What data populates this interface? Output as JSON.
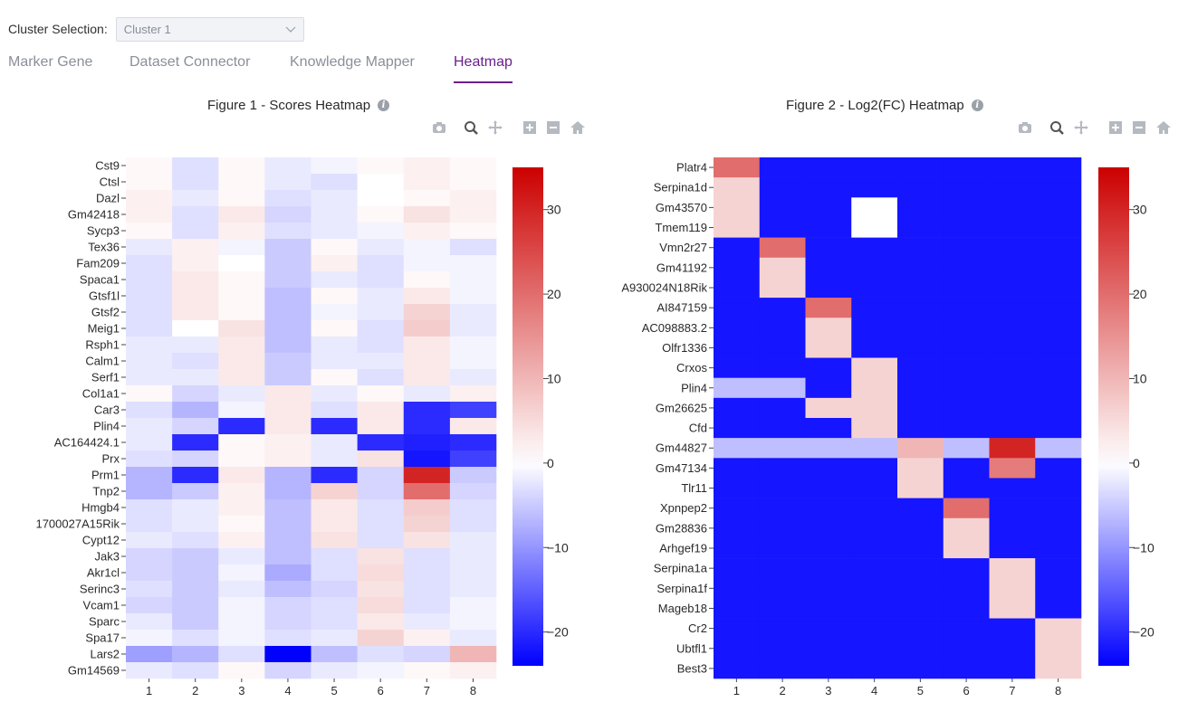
{
  "cluster": {
    "label": "Cluster Selection:",
    "value": "Cluster 1"
  },
  "tabs": [
    {
      "label": "Marker Gene",
      "active": false
    },
    {
      "label": "Dataset Connector",
      "active": false
    },
    {
      "label": "Knowledge Mapper",
      "active": false
    },
    {
      "label": "Heatmap",
      "active": true
    }
  ],
  "colors": {
    "accent": "#6b1f8c",
    "scale_low": "#0000ff",
    "scale_mid": "#ffffff",
    "scale_high": "#cc0000"
  },
  "modebar_icons": [
    "camera-icon",
    "zoom-icon",
    "pan-icon",
    "zoom-in-icon",
    "zoom-out-icon",
    "home-icon"
  ],
  "figures": [
    {
      "title": "Figure 1 - Scores Heatmap"
    },
    {
      "title": "Figure 2 - Log2(FC) Heatmap"
    }
  ],
  "chart_data": [
    {
      "type": "heatmap",
      "title": "Figure 1 - Scores Heatmap",
      "x": [
        "1",
        "2",
        "3",
        "4",
        "5",
        "6",
        "7",
        "8"
      ],
      "y": [
        "Cst9",
        "Ctsl",
        "Dazl",
        "Gm42418",
        "Sycp3",
        "Tex36",
        "Fam209",
        "Spaca1",
        "Gtsf1l",
        "Gtsf2",
        "Meig1",
        "Rsph1",
        "Calm1",
        "Serf1",
        "Col1a1",
        "Car3",
        "Plin4",
        "AC164424.1",
        "Prx",
        "Prm1",
        "Tnp2",
        "Hmgb4",
        "1700027A15Rik",
        "Cypt12",
        "Jak3",
        "Akr1cl",
        "Serinc3",
        "Vcam1",
        "Sparc",
        "Spa17",
        "Lars2",
        "Gm14569"
      ],
      "z": [
        [
          1,
          -3,
          1,
          -2,
          -1,
          1,
          2,
          1
        ],
        [
          1,
          -3,
          1,
          -2,
          -3,
          0,
          2,
          1
        ],
        [
          2,
          -2,
          1,
          -3,
          -2,
          0,
          1,
          2
        ],
        [
          2,
          -3,
          3,
          -4,
          -2,
          1,
          4,
          2
        ],
        [
          1,
          -3,
          2,
          -3,
          -2,
          -1,
          2,
          1
        ],
        [
          -2,
          2,
          -1,
          -5,
          1,
          -2,
          -1,
          -3
        ],
        [
          -3,
          2,
          0,
          -5,
          2,
          -3,
          -1,
          -1
        ],
        [
          -3,
          3,
          1,
          -5,
          -2,
          -3,
          1,
          -1
        ],
        [
          -3,
          3,
          1,
          -6,
          1,
          -2,
          3,
          -1
        ],
        [
          -3,
          3,
          1,
          -6,
          -1,
          -2,
          6,
          -2
        ],
        [
          -3,
          0,
          4,
          -6,
          1,
          -3,
          7,
          -2
        ],
        [
          -2,
          -2,
          3,
          -6,
          -2,
          -3,
          3,
          -1
        ],
        [
          -2,
          -3,
          3,
          -5,
          -2,
          -2,
          3,
          -1
        ],
        [
          -2,
          -2,
          3,
          -5,
          1,
          -3,
          3,
          -2
        ],
        [
          1,
          -4,
          -2,
          3,
          -2,
          1,
          -2,
          2
        ],
        [
          -3,
          -7,
          -1,
          3,
          -3,
          3,
          -20,
          -18
        ],
        [
          -2,
          -4,
          -20,
          3,
          -20,
          3,
          -20,
          3
        ],
        [
          -2,
          -20,
          1,
          2,
          -2,
          -20,
          -21,
          -20
        ],
        [
          -3,
          -4,
          1,
          2,
          -2,
          4,
          -22,
          -18
        ],
        [
          -7,
          -20,
          3,
          -7,
          -20,
          -4,
          30,
          -5
        ],
        [
          -7,
          -5,
          2,
          -7,
          6,
          -4,
          20,
          -4
        ],
        [
          -3,
          -2,
          2,
          -6,
          3,
          -3,
          7,
          -3
        ],
        [
          -3,
          -2,
          1,
          -6,
          3,
          -3,
          6,
          -3
        ],
        [
          -2,
          -3,
          2,
          -6,
          4,
          -3,
          4,
          -2
        ],
        [
          -4,
          -5,
          -2,
          -6,
          -3,
          4,
          -3,
          -2
        ],
        [
          -4,
          -5,
          -1,
          -8,
          -3,
          5,
          -3,
          -2
        ],
        [
          -3,
          -5,
          -2,
          -6,
          -4,
          4,
          -3,
          -2
        ],
        [
          -4,
          -5,
          -1,
          -4,
          -3,
          5,
          -3,
          -1
        ],
        [
          -2,
          -5,
          -1,
          -4,
          -3,
          3,
          -2,
          -1
        ],
        [
          -1,
          -3,
          -1,
          -3,
          -2,
          6,
          2,
          -2
        ],
        [
          -9,
          -7,
          -3,
          -24,
          -6,
          -3,
          -4,
          10
        ],
        [
          -2,
          -3,
          1,
          -4,
          -2,
          -1,
          1,
          2
        ]
      ],
      "colorscale": {
        "min": -24,
        "max": 35,
        "ticks": [
          30,
          20,
          10,
          0,
          -10,
          -20
        ]
      }
    },
    {
      "type": "heatmap",
      "title": "Figure 2 - Log2(FC) Heatmap",
      "x": [
        "1",
        "2",
        "3",
        "4",
        "5",
        "6",
        "7",
        "8"
      ],
      "y": [
        "Platr4",
        "Serpina1d",
        "Gm43570",
        "Tmem119",
        "Vmn2r27",
        "Gm41192",
        "A930024N18Rik",
        "AI847159",
        "AC098883.2",
        "Olfr1336",
        "Crxos",
        "Plin4",
        "Gm26625",
        "Cfd",
        "Gm44827",
        "Gm47134",
        "Tlr11",
        "Xpnpep2",
        "Gm28836",
        "Arhgef19",
        "Serpina1a",
        "Serpina1f",
        "Mageb18",
        "Cr2",
        "Ubtfl1",
        "Best3"
      ],
      "z": [
        [
          20,
          -22,
          -22,
          -22,
          -22,
          -22,
          -22,
          -22
        ],
        [
          6,
          -22,
          -22,
          -22,
          -22,
          -22,
          -22,
          -22
        ],
        [
          6,
          -22,
          -22,
          0,
          -22,
          -22,
          -22,
          -22
        ],
        [
          6,
          -22,
          -22,
          0,
          -22,
          -22,
          -22,
          -22
        ],
        [
          -22,
          20,
          -22,
          -22,
          -22,
          -22,
          -22,
          -22
        ],
        [
          -22,
          6,
          -22,
          -22,
          -22,
          -22,
          -22,
          -22
        ],
        [
          -22,
          6,
          -22,
          -22,
          -22,
          -22,
          -22,
          -22
        ],
        [
          -22,
          -22,
          20,
          -22,
          -22,
          -22,
          -22,
          -22
        ],
        [
          -22,
          -22,
          6,
          -22,
          -22,
          -22,
          -22,
          -22
        ],
        [
          -22,
          -22,
          6,
          -22,
          -22,
          -22,
          -22,
          -22
        ],
        [
          -22,
          -22,
          -22,
          6,
          -22,
          -22,
          -22,
          -22
        ],
        [
          -6,
          -6,
          -22,
          6,
          -22,
          -22,
          -22,
          -22
        ],
        [
          -22,
          -22,
          6,
          6,
          -22,
          -22,
          -22,
          -22
        ],
        [
          -22,
          -22,
          -22,
          6,
          -22,
          -22,
          -22,
          -22
        ],
        [
          -6,
          -6,
          -6,
          -6,
          10,
          -6,
          30,
          -6
        ],
        [
          -22,
          -22,
          -22,
          -22,
          6,
          -22,
          18,
          -22
        ],
        [
          -22,
          -22,
          -22,
          -22,
          6,
          -22,
          -22,
          -22
        ],
        [
          -22,
          -22,
          -22,
          -22,
          -22,
          20,
          -22,
          -22
        ],
        [
          -22,
          -22,
          -22,
          -22,
          -22,
          6,
          -22,
          -22
        ],
        [
          -22,
          -22,
          -22,
          -22,
          -22,
          6,
          -22,
          -22
        ],
        [
          -22,
          -22,
          -22,
          -22,
          -22,
          -22,
          6,
          -22
        ],
        [
          -22,
          -22,
          -22,
          -22,
          -22,
          -22,
          6,
          -22
        ],
        [
          -22,
          -22,
          -22,
          -22,
          -22,
          -22,
          6,
          -22
        ],
        [
          -22,
          -22,
          -22,
          -22,
          -22,
          -22,
          -22,
          6
        ],
        [
          -22,
          -22,
          -22,
          -22,
          -22,
          -22,
          -22,
          6
        ],
        [
          -22,
          -22,
          -22,
          -22,
          -22,
          -22,
          -22,
          6
        ]
      ],
      "colorscale": {
        "min": -24,
        "max": 35,
        "ticks": [
          30,
          20,
          10,
          0,
          -10,
          -20
        ]
      }
    }
  ]
}
